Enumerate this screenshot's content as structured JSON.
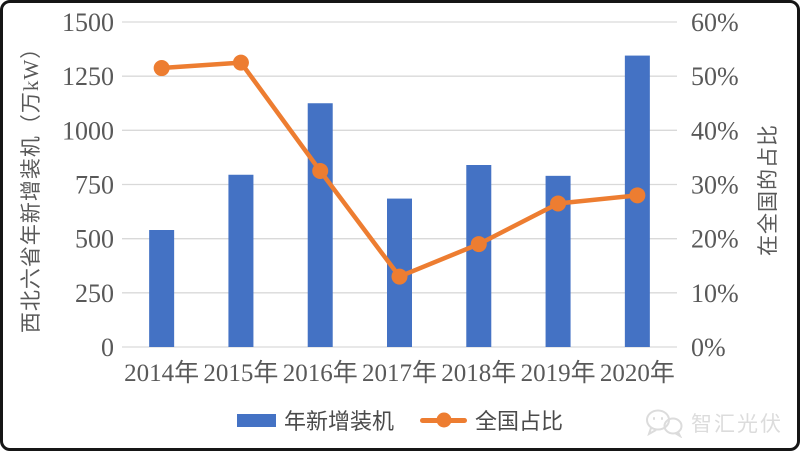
{
  "watermark": {
    "label": "智汇光伏",
    "icon": "wechat-bubbles-icon"
  },
  "colors": {
    "bar": "#4472C4",
    "line": "#ED7D31",
    "gridline": "#D9D9D9",
    "axis_line": "#D9D9D9",
    "tick_text": "#595959",
    "frame_border": "#161616"
  },
  "chart_data": {
    "type": "combo-bar-line",
    "categories": [
      "2014年",
      "2015年",
      "2016年",
      "2017年",
      "2018年",
      "2019年",
      "2020年"
    ],
    "series": [
      {
        "name": "年新增装机",
        "type": "bar",
        "axis": "left",
        "color": "#4472C4",
        "values": [
          540,
          795,
          1125,
          685,
          840,
          790,
          1345
        ]
      },
      {
        "name": "全国占比",
        "type": "line",
        "axis": "right",
        "color": "#ED7D31",
        "values": [
          51.5,
          52.5,
          32.5,
          13,
          19,
          26.5,
          28
        ]
      }
    ],
    "left_axis": {
      "title": "西北六省年新增装机（万kW）",
      "min": 0,
      "max": 1500,
      "step": 250,
      "tick_labels": [
        "0",
        "250",
        "500",
        "750",
        "1000",
        "1250",
        "1500"
      ]
    },
    "right_axis": {
      "title": "在全国的占比",
      "min": 0,
      "max": 60,
      "step": 10,
      "tick_labels": [
        "0%",
        "10%",
        "20%",
        "30%",
        "40%",
        "50%",
        "60%"
      ]
    },
    "grid": true,
    "legend_position": "bottom"
  }
}
